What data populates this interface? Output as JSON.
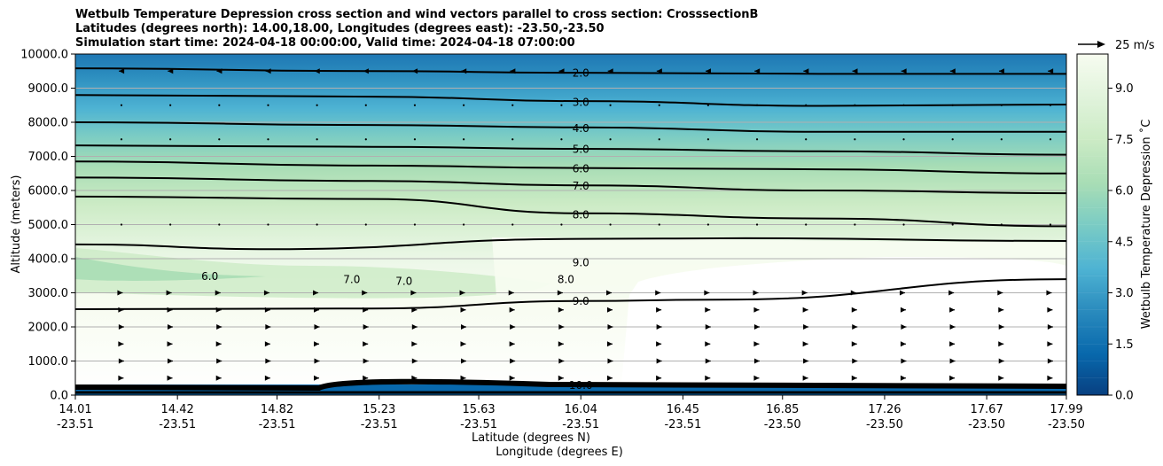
{
  "title_lines": [
    "Wetbulb Temperature Depression cross section and wind vectors parallel to cross section: CrosssectionB",
    "Latitudes (degrees north): 14.00,18.00, Longitudes (degrees east): -23.50,-23.50",
    "Simulation start time: 2024-04-18 00:00:00, Valid time: 2024-04-18 07:00:00"
  ],
  "chart_data": {
    "type": "heatmap",
    "subtype": "filled contour cross section with wind vectors",
    "xlabel": "Latitude (degrees N)",
    "xlabel2": "Longitude (degrees E)",
    "ylabel": "Altitude (meters)",
    "ylim": [
      0,
      10000
    ],
    "y_ticks": [
      "0.0",
      "1000.0",
      "2000.0",
      "3000.0",
      "4000.0",
      "5000.0",
      "6000.0",
      "7000.0",
      "8000.0",
      "9000.0",
      "10000.0"
    ],
    "x_ticks": [
      {
        "lat": "14.01",
        "lon": "-23.51"
      },
      {
        "lat": "14.42",
        "lon": "-23.51"
      },
      {
        "lat": "14.82",
        "lon": "-23.51"
      },
      {
        "lat": "15.23",
        "lon": "-23.51"
      },
      {
        "lat": "15.63",
        "lon": "-23.51"
      },
      {
        "lat": "16.04",
        "lon": "-23.51"
      },
      {
        "lat": "16.45",
        "lon": "-23.51"
      },
      {
        "lat": "16.85",
        "lon": "-23.50"
      },
      {
        "lat": "17.26",
        "lon": "-23.50"
      },
      {
        "lat": "17.67",
        "lon": "-23.50"
      },
      {
        "lat": "17.99",
        "lon": "-23.50"
      }
    ],
    "grid": "horizontal",
    "colorbar": {
      "label": "Wetbulb Temperature Depression ˚C",
      "range": [
        0,
        10
      ],
      "ticks": [
        "0.0",
        "1.5",
        "3.0",
        "4.5",
        "6.0",
        "7.5",
        "9.0"
      ],
      "colormap": "GnBu_r"
    },
    "contour_labels": [
      {
        "text": "2.0",
        "level": 2,
        "lat": 16.04,
        "alt": 9450
      },
      {
        "text": "3.0",
        "level": 3,
        "lat": 16.04,
        "alt": 8600
      },
      {
        "text": "4.0",
        "level": 4,
        "lat": 16.04,
        "alt": 7830
      },
      {
        "text": "5.0",
        "level": 5,
        "lat": 16.04,
        "alt": 7220
      },
      {
        "text": "6.0",
        "level": 6,
        "lat": 16.04,
        "alt": 6650
      },
      {
        "text": "7.0",
        "level": 7,
        "lat": 16.04,
        "alt": 6140
      },
      {
        "text": "8.0",
        "level": 8,
        "lat": 16.04,
        "alt": 5300
      },
      {
        "text": "9.0",
        "level": 9,
        "lat": 16.04,
        "alt": 3900
      },
      {
        "text": "9.0",
        "level": 9,
        "lat": 16.04,
        "alt": 2770
      },
      {
        "text": "6.0",
        "level": 6,
        "lat": 14.55,
        "alt": 3500
      },
      {
        "text": "7.0",
        "level": 7,
        "lat": 15.12,
        "alt": 3400
      },
      {
        "text": "7.0",
        "level": 7,
        "lat": 15.33,
        "alt": 3350
      },
      {
        "text": "8.0",
        "level": 8,
        "lat": 15.98,
        "alt": 3400
      },
      {
        "text": "10.0",
        "level": 10,
        "lat": 16.04,
        "alt": 300
      }
    ],
    "wind_vectors": {
      "reference": "25 m/s",
      "reference_speed": 25,
      "levels": [
        {
          "alt": 9500,
          "u": -6
        },
        {
          "alt": 8500,
          "u": -1
        },
        {
          "alt": 7500,
          "u": 0
        },
        {
          "alt": 5000,
          "u": 0
        },
        {
          "alt": 3000,
          "u": 3
        },
        {
          "alt": 2500,
          "u": 5
        },
        {
          "alt": 2000,
          "u": 6
        },
        {
          "alt": 1500,
          "u": 5
        },
        {
          "alt": 1000,
          "u": 6
        },
        {
          "alt": 500,
          "u": 5
        }
      ]
    }
  }
}
